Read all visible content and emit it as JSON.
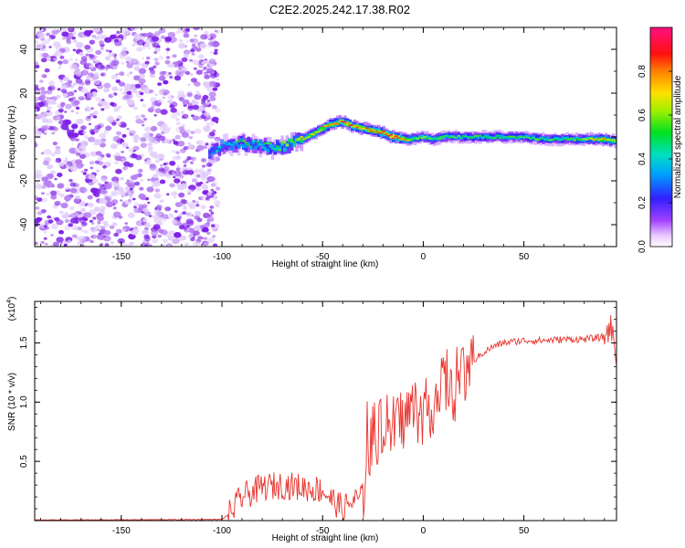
{
  "title": "C2E2.2025.242.17.38.R02",
  "colors": {
    "snr_line": "#e8332d",
    "cloud": "#8a2be2",
    "axis": "#000000"
  },
  "chart_data": [
    {
      "type": "heatmap",
      "panel": "top",
      "title": "C2E2.2025.242.17.38.R02",
      "xlabel": "Height of straight line (km)",
      "ylabel": "Frequency (Hz)",
      "xlim": [
        -193,
        96
      ],
      "ylim": [
        -50,
        50
      ],
      "xticks": [
        -150,
        -100,
        -50,
        0,
        50
      ],
      "yticks": [
        -40,
        -20,
        0,
        20,
        40
      ],
      "colorbar": {
        "label": "Normalized spectral amplitude",
        "range": [
          0,
          1
        ],
        "ticks": [
          "0.0",
          "0.2",
          "0.4",
          "0.6",
          "0.8"
        ],
        "tick_values": [
          0,
          0.2,
          0.4,
          0.6,
          0.8
        ],
        "colormap": "rainbow (white-violet-blue-cyan-green-yellow-red-magenta)"
      },
      "noise_region_x": [
        -193,
        -102
      ],
      "trace": {
        "x": [
          -106,
          -100,
          -90,
          -80,
          -75,
          -70,
          -65,
          -60,
          -55,
          -50,
          -45,
          -40,
          -35,
          -30,
          -25,
          -20,
          -15,
          -10,
          -5,
          0,
          5,
          10,
          20,
          30,
          40,
          50,
          60,
          70,
          80,
          90,
          96
        ],
        "freq": [
          -8,
          -4,
          -3,
          -4,
          -5,
          -4,
          -3,
          -1,
          1,
          4,
          6,
          7,
          5,
          4,
          3,
          2,
          0,
          -1,
          -1,
          0,
          -1,
          0,
          0,
          0,
          0,
          0,
          -1,
          -1,
          -1,
          -1,
          -2
        ],
        "amplitude": [
          0.35,
          0.4,
          0.45,
          0.45,
          0.5,
          0.55,
          0.6,
          0.65,
          0.7,
          0.75,
          0.8,
          0.85,
          0.85,
          0.8,
          0.8,
          0.85,
          0.95,
          0.8,
          0.6,
          0.55,
          0.55,
          0.55,
          0.5,
          0.5,
          0.5,
          0.5,
          0.5,
          0.5,
          0.55,
          0.75,
          0.6
        ]
      }
    },
    {
      "type": "line",
      "panel": "bottom",
      "xlabel": "Height of straight line (km)",
      "ylabel": "SNR (10 * v/v)",
      "scale_label": "(x10",
      "scale_exp": "4",
      "scale_close": ")",
      "xlim": [
        -193,
        96
      ],
      "ylim": [
        0,
        1.85
      ],
      "xticks": [
        -150,
        -100,
        -50,
        0,
        50
      ],
      "yticks": [
        0.5,
        1.0,
        1.5
      ],
      "ytick_labels": [
        "0.5",
        "1.0",
        "1.5"
      ],
      "series": [
        {
          "name": "SNR",
          "x": [
            -193,
            -120,
            -100,
            -96,
            -90,
            -80,
            -70,
            -60,
            -50,
            -45,
            -40,
            -35,
            -30,
            -28,
            -25,
            -20,
            -15,
            -10,
            -5,
            0,
            5,
            10,
            15,
            20,
            25,
            30,
            35,
            40,
            50,
            60,
            70,
            80,
            85,
            90,
            93,
            96
          ],
          "values": [
            0.005,
            0.008,
            0.01,
            0.06,
            0.2,
            0.28,
            0.3,
            0.28,
            0.26,
            0.17,
            0.1,
            0.16,
            0.2,
            0.6,
            0.7,
            0.8,
            0.78,
            0.86,
            0.95,
            0.9,
            1.0,
            1.15,
            1.1,
            1.2,
            1.35,
            1.42,
            1.47,
            1.5,
            1.52,
            1.52,
            1.53,
            1.53,
            1.54,
            1.55,
            1.65,
            1.4
          ]
        }
      ]
    }
  ]
}
